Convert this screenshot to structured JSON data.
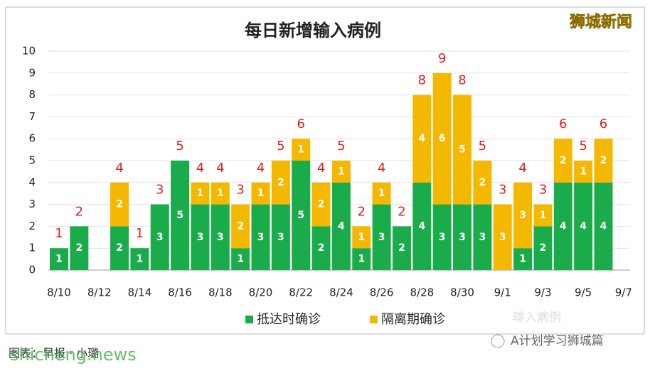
{
  "chart_data": {
    "type": "stacked-bar",
    "title": "每日新增输入病例",
    "categories": [
      "8/10",
      null,
      "8/12",
      null,
      "8/14",
      null,
      "8/16",
      null,
      "8/18",
      null,
      "8/20",
      null,
      "8/22",
      null,
      "8/24",
      null,
      "8/26",
      null,
      "8/28",
      null,
      "8/30",
      null,
      "9/1",
      null,
      "9/3",
      null,
      "9/5",
      null,
      "9/7"
    ],
    "series": [
      {
        "name": "抵达时确诊",
        "color": "#1aab4b",
        "values": [
          1,
          2,
          null,
          2,
          1,
          3,
          5,
          3,
          3,
          1,
          3,
          3,
          5,
          2,
          4,
          1,
          3,
          2,
          4,
          3,
          3,
          3,
          0,
          1,
          2,
          4,
          4,
          4,
          null
        ]
      },
      {
        "name": "隔离期确诊",
        "color": "#f5b800",
        "values": [
          0,
          0,
          null,
          2,
          0,
          0,
          0,
          1,
          1,
          2,
          1,
          2,
          1,
          2,
          1,
          1,
          1,
          0,
          4,
          6,
          5,
          2,
          3,
          3,
          1,
          2,
          1,
          2,
          null
        ]
      }
    ],
    "totals": [
      1,
      2,
      null,
      4,
      1,
      3,
      5,
      4,
      4,
      3,
      4,
      5,
      6,
      4,
      5,
      2,
      4,
      2,
      8,
      9,
      8,
      5,
      3,
      4,
      3,
      6,
      5,
      6,
      null
    ],
    "ylim": [
      0,
      10
    ],
    "yticks": [
      0,
      1,
      2,
      3,
      4,
      5,
      6,
      7,
      8,
      9,
      10
    ],
    "grid": true,
    "watermark": "狮城新闻",
    "faint_text": "输入病例",
    "wechat_account": "A计划学习狮城篇",
    "source": "图表：早报 · 小璐",
    "site": "shicheng.news"
  }
}
